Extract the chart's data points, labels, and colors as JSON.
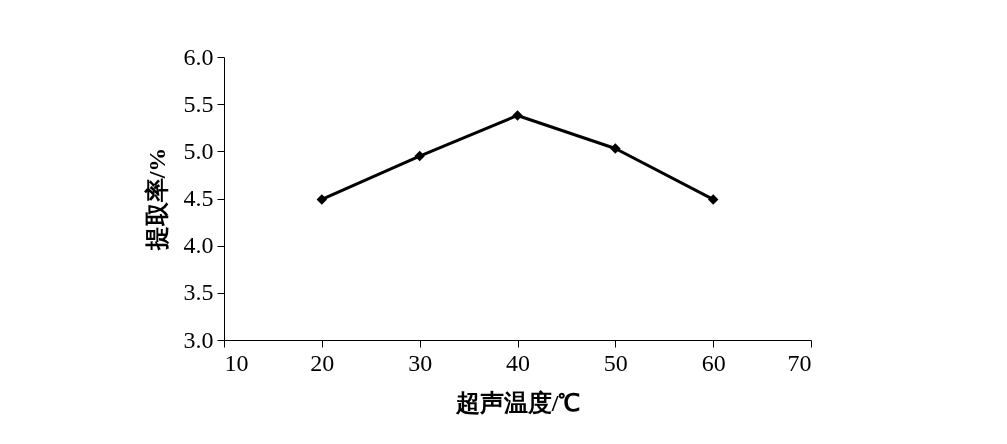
{
  "chart_data": {
    "type": "line",
    "xlabel": "超声温度/℃",
    "ylabel": "提取率/%",
    "x": [
      20,
      30,
      40,
      50,
      60
    ],
    "series": [
      {
        "color": "#000000",
        "values": [
          4.49,
          4.95,
          5.38,
          5.03,
          4.49
        ]
      }
    ],
    "xlim": [
      10,
      70
    ],
    "xticks": [
      10,
      20,
      30,
      40,
      50,
      60,
      70
    ],
    "ylim": [
      3.0,
      6.0
    ],
    "yticks": [
      {
        "value": 3,
        "label": "3.0"
      },
      3.5,
      {
        "value": 4,
        "label": "4.0"
      },
      4.5,
      {
        "value": 5,
        "label": "5.0"
      },
      5.5,
      {
        "value": 6,
        "label": "6.0"
      }
    ],
    "grid": false,
    "legend": false,
    "marker": "diamond",
    "line_style": "solid"
  }
}
